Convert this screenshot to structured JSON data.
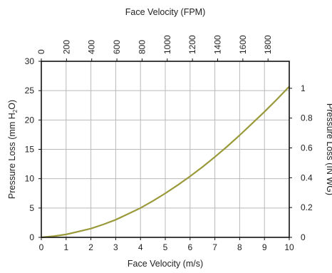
{
  "chart_data": {
    "type": "line",
    "x_bottom": {
      "label": "Face Velocity (m/s)",
      "range": [
        0,
        10
      ],
      "ticks": [
        "0",
        "1",
        "2",
        "3",
        "4",
        "5",
        "6",
        "7",
        "8",
        "9",
        "10"
      ]
    },
    "x_top": {
      "label": "Face Velocity (FPM)",
      "range": [
        0,
        1968.5
      ],
      "ticks": [
        "0",
        "200",
        "400",
        "600",
        "800",
        "1000",
        "1200",
        "1400",
        "1600",
        "1800"
      ]
    },
    "y_left": {
      "label_main": "Pressure Loss (mm H",
      "label_sub": "2",
      "label_end": "O)",
      "range": [
        0,
        30
      ],
      "ticks": [
        "0",
        "5",
        "10",
        "15",
        "20",
        "25",
        "30"
      ]
    },
    "y_right": {
      "label": "Pressure Loss (IN WG)",
      "range": [
        0,
        1.181
      ],
      "ticks": [
        "0",
        "0.2",
        "0.4",
        "0.6",
        "0.8",
        "1"
      ]
    },
    "grid": true,
    "series": [
      {
        "color": "#9a9a3a",
        "x": [
          0,
          0.5,
          1,
          1.5,
          2,
          2.5,
          3,
          3.5,
          4,
          4.5,
          5,
          5.5,
          6,
          6.5,
          7,
          7.5,
          8,
          8.5,
          9,
          9.5,
          10
        ],
        "y": [
          0,
          0.2,
          0.5,
          1.0,
          1.5,
          2.2,
          3.0,
          4.0,
          5.0,
          6.2,
          7.5,
          8.9,
          10.4,
          12.0,
          13.7,
          15.5,
          17.4,
          19.4,
          21.4,
          23.5,
          25.7
        ]
      }
    ]
  }
}
